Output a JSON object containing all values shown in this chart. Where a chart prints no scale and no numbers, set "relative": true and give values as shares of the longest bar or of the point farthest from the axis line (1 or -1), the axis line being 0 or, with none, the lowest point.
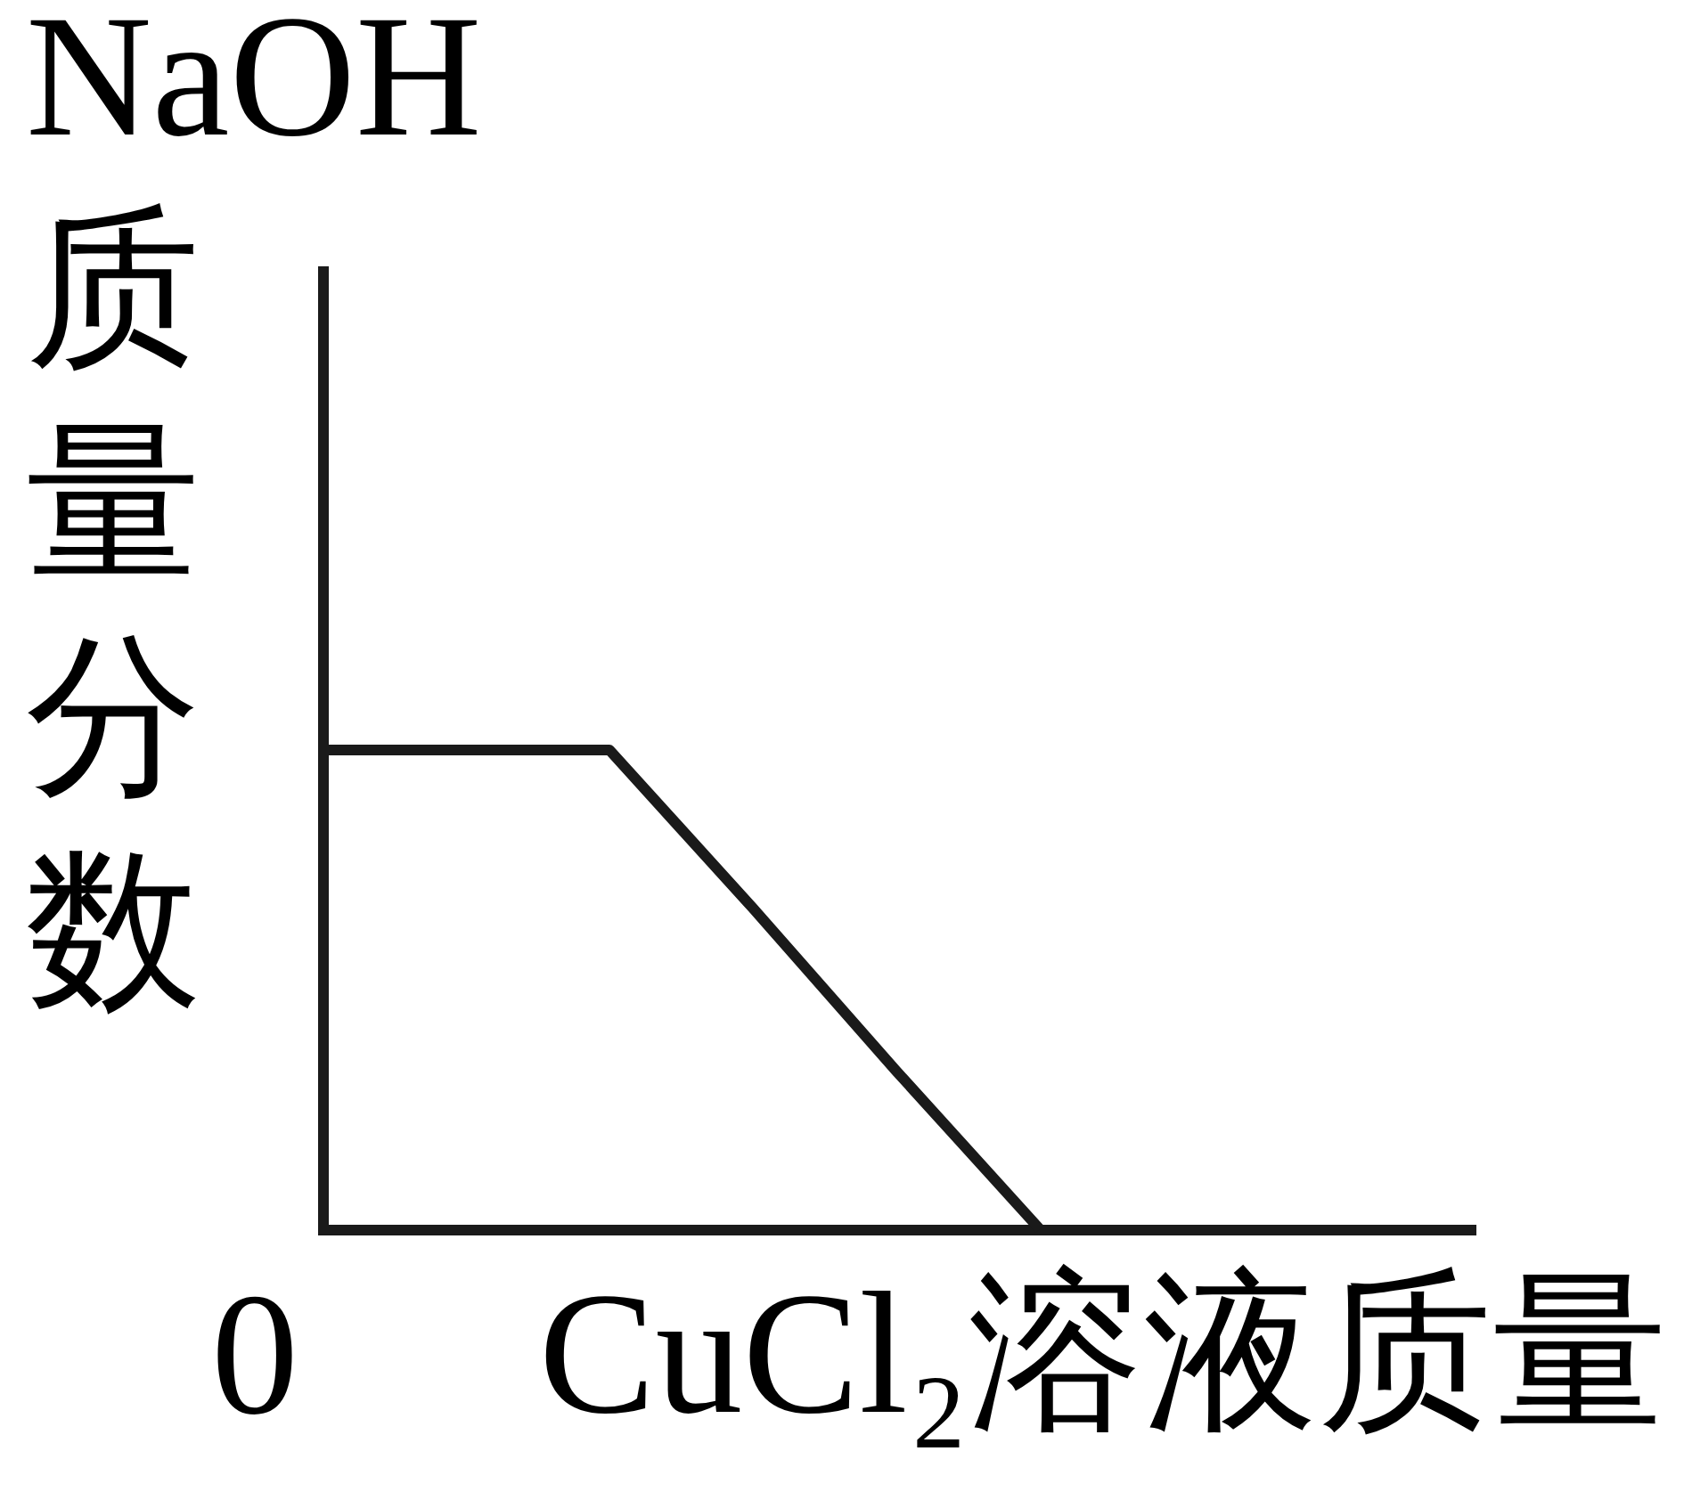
{
  "chart_data": {
    "type": "line",
    "relative": true,
    "xlabel": "CuCl₂溶液质量",
    "ylabel": "NaOH质量分数",
    "categories": [
      null,
      null,
      null,
      null,
      null,
      null,
      null,
      null,
      null
    ],
    "series": [
      {
        "color": "#1a1a1a",
        "values": [
          1,
          1,
          1,
          0.67,
          0.33,
          0,
          null,
          null,
          null
        ]
      }
    ],
    "annotations": [
      "0"
    ],
    "marker": "none",
    "line_style": "solid",
    "tick_labels": false
  }
}
